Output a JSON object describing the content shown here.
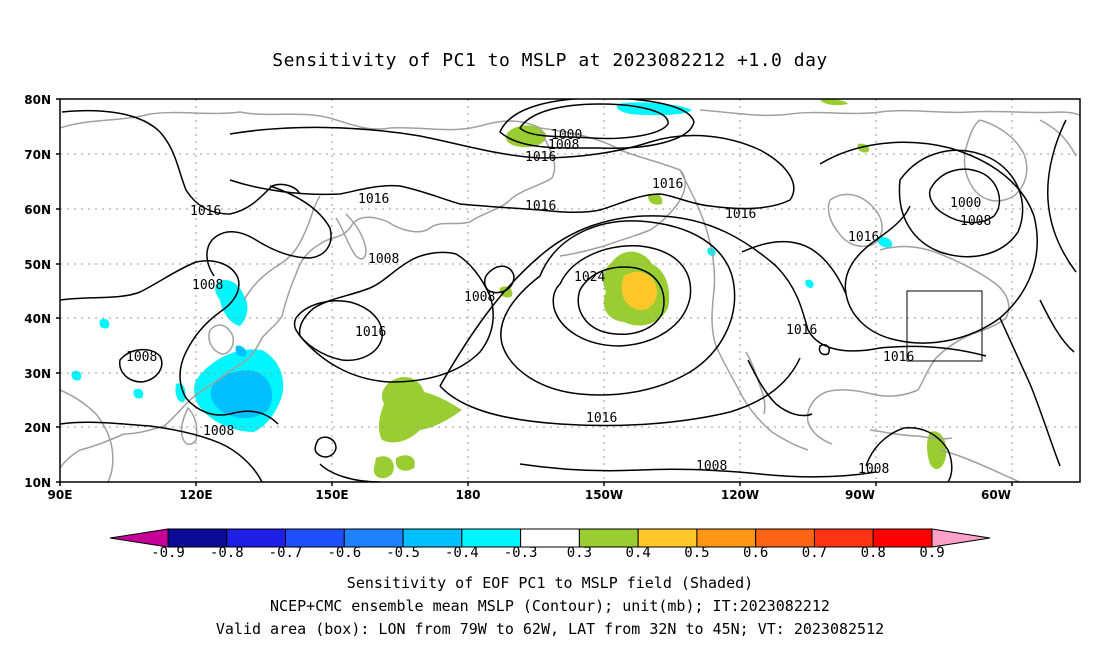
{
  "title": "Sensitivity of PC1 to MSLP at 2023082212 +1.0 day",
  "lat_ticks": [
    "80N",
    "70N",
    "60N",
    "50N",
    "40N",
    "30N",
    "20N",
    "10N"
  ],
  "lon_ticks": [
    "90E",
    "120E",
    "150E",
    "180",
    "150W",
    "120W",
    "90W",
    "60W"
  ],
  "contour_labels": [
    "1000",
    "1008",
    "1016",
    "1016",
    "1016",
    "1016",
    "1016",
    "1000",
    "1008",
    "1016",
    "1008",
    "1024",
    "1008",
    "1008",
    "1016",
    "1016",
    "1016",
    "1008",
    "1008",
    "1016",
    "1008",
    "1008"
  ],
  "colorbar": {
    "labels": [
      "-0.9",
      "-0.8",
      "-0.7",
      "-0.6",
      "-0.5",
      "-0.4",
      "-0.3",
      "0.3",
      "0.4",
      "0.5",
      "0.6",
      "0.7",
      "0.8",
      "0.9"
    ],
    "colors": [
      "#0a0a96",
      "#1e1ee6",
      "#1e50ff",
      "#1e82ff",
      "#00c0ff",
      "#00f5ff",
      "#ffffff",
      "#9acd32",
      "#ffc828",
      "#ff9614",
      "#ff6414",
      "#ff3214",
      "#ff0000"
    ],
    "low_end_color": "#c8009a",
    "high_end_color": "#ffa0c8"
  },
  "captions": {
    "line1": "Sensitivity of EOF PC1 to MSLP field (Shaded)",
    "line2": "NCEP+CMC ensemble mean MSLP (Contour); unit(mb); IT:2023082212",
    "line3": "Valid area (box): LON from 79W to 62W, LAT from 32N to 45N; VT: 2023082512"
  },
  "colors": {
    "coast": "#a0a0a0",
    "grid": "#9a9a9a",
    "contour": "#000000",
    "green": "#9acd32",
    "yellow": "#ffc828",
    "cyan": "#00f5ff",
    "lightblue": "#00c0ff"
  }
}
